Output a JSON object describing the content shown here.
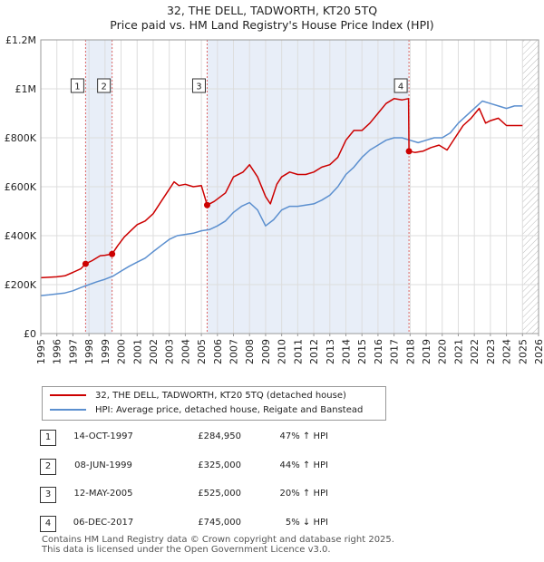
{
  "chart_data": {
    "type": "line",
    "title": "32, THE DELL, TADWORTH, KT20 5TQ",
    "subtitle": "Price paid vs. HM Land Registry's House Price Index (HPI)",
    "xlim": [
      1995,
      2026
    ],
    "ylim": [
      0,
      1200000
    ],
    "x_ticks": [
      "1995",
      "1996",
      "1997",
      "1998",
      "1999",
      "2000",
      "2001",
      "2002",
      "2003",
      "2004",
      "2005",
      "2006",
      "2007",
      "2008",
      "2009",
      "2010",
      "2011",
      "2012",
      "2013",
      "2014",
      "2015",
      "2016",
      "2017",
      "2018",
      "2019",
      "2020",
      "2021",
      "2022",
      "2023",
      "2024",
      "2025",
      "2026"
    ],
    "y_ticks": [
      {
        "value": 0,
        "label": "£0"
      },
      {
        "value": 200000,
        "label": "£200K"
      },
      {
        "value": 400000,
        "label": "£400K"
      },
      {
        "value": 600000,
        "label": "£600K"
      },
      {
        "value": 800000,
        "label": "£800K"
      },
      {
        "value": 1000000,
        "label": "£1M"
      },
      {
        "value": 1200000,
        "label": "£1.2M"
      }
    ],
    "grid": true,
    "shaded_periods": [
      {
        "from": 1997.79,
        "to": 1999.44
      },
      {
        "from": 2005.36,
        "to": 2017.93
      }
    ],
    "future_hatch_from": 2025.0,
    "series": [
      {
        "name": "32, THE DELL, TADWORTH, KT20 5TQ (detached house)",
        "color": "#cc0000",
        "x": [
          1995.0,
          1995.5,
          1996.0,
          1996.5,
          1997.0,
          1997.5,
          1997.79,
          1998.2,
          1998.7,
          1999.0,
          1999.44,
          1999.8,
          2000.2,
          2000.6,
          2001.0,
          2001.5,
          2002.0,
          2002.5,
          2003.0,
          2003.3,
          2003.6,
          2004.0,
          2004.5,
          2005.0,
          2005.36,
          2005.8,
          2006.5,
          2007.0,
          2007.6,
          2008.0,
          2008.5,
          2009.0,
          2009.3,
          2009.7,
          2010.0,
          2010.5,
          2011.0,
          2011.5,
          2012.0,
          2012.5,
          2013.0,
          2013.5,
          2014.0,
          2014.5,
          2015.0,
          2015.5,
          2016.0,
          2016.5,
          2017.0,
          2017.5,
          2017.9,
          2017.93,
          2018.3,
          2018.8,
          2019.3,
          2019.8,
          2020.3,
          2020.8,
          2021.3,
          2021.8,
          2022.3,
          2022.7,
          2023.0,
          2023.5,
          2024.0,
          2024.5,
          2025.0
        ],
        "y": [
          228000,
          230000,
          232000,
          236000,
          250000,
          265000,
          284950,
          298000,
          318000,
          320000,
          325000,
          360000,
          395000,
          420000,
          445000,
          460000,
          490000,
          540000,
          590000,
          620000,
          605000,
          610000,
          600000,
          605000,
          525000,
          540000,
          575000,
          640000,
          660000,
          690000,
          640000,
          560000,
          530000,
          610000,
          640000,
          660000,
          650000,
          650000,
          660000,
          680000,
          690000,
          720000,
          790000,
          830000,
          830000,
          860000,
          900000,
          940000,
          960000,
          955000,
          960000,
          745000,
          740000,
          745000,
          760000,
          770000,
          750000,
          800000,
          850000,
          880000,
          920000,
          860000,
          870000,
          880000,
          850000,
          850000,
          850000
        ]
      },
      {
        "name": "HPI: Average price, detached house, Reigate and Banstead",
        "color": "#5b8fcf",
        "x": [
          1995.0,
          1995.5,
          1996.0,
          1996.5,
          1997.0,
          1997.5,
          1998.0,
          1998.5,
          1999.0,
          1999.5,
          2000.0,
          2000.5,
          2001.0,
          2001.5,
          2002.0,
          2002.5,
          2003.0,
          2003.5,
          2004.0,
          2004.5,
          2005.0,
          2005.5,
          2006.0,
          2006.5,
          2007.0,
          2007.5,
          2008.0,
          2008.5,
          2009.0,
          2009.5,
          2010.0,
          2010.5,
          2011.0,
          2011.5,
          2012.0,
          2012.5,
          2013.0,
          2013.5,
          2014.0,
          2014.5,
          2015.0,
          2015.5,
          2016.0,
          2016.5,
          2017.0,
          2017.5,
          2018.0,
          2018.5,
          2019.0,
          2019.5,
          2020.0,
          2020.5,
          2021.0,
          2021.5,
          2022.0,
          2022.5,
          2023.0,
          2023.5,
          2024.0,
          2024.5,
          2025.0
        ],
        "y": [
          155000,
          158000,
          162000,
          166000,
          175000,
          188000,
          200000,
          212000,
          222000,
          235000,
          255000,
          275000,
          292000,
          308000,
          335000,
          360000,
          385000,
          400000,
          405000,
          410000,
          420000,
          425000,
          440000,
          460000,
          495000,
          520000,
          535000,
          505000,
          440000,
          465000,
          505000,
          520000,
          520000,
          525000,
          530000,
          545000,
          565000,
          600000,
          650000,
          680000,
          720000,
          750000,
          770000,
          790000,
          800000,
          800000,
          790000,
          780000,
          790000,
          800000,
          800000,
          820000,
          860000,
          890000,
          920000,
          950000,
          940000,
          930000,
          920000,
          930000,
          930000
        ]
      }
    ],
    "sale_markers": [
      {
        "id": "1",
        "x": 1997.79,
        "y": 284950
      },
      {
        "id": "2",
        "x": 1999.44,
        "y": 325000
      },
      {
        "id": "3",
        "x": 2005.36,
        "y": 525000
      },
      {
        "id": "4",
        "x": 2017.93,
        "y": 745000
      }
    ]
  },
  "legend": {
    "property_label": "32, THE DELL, TADWORTH, KT20 5TQ (detached house)",
    "hpi_label": "HPI: Average price, detached house, Reigate and Banstead"
  },
  "sales": [
    {
      "num": "1",
      "date": "14-OCT-1997",
      "price": "£284,950",
      "hpi": "47% ↑ HPI"
    },
    {
      "num": "2",
      "date": "08-JUN-1999",
      "price": "£325,000",
      "hpi": "44% ↑ HPI"
    },
    {
      "num": "3",
      "date": "12-MAY-2005",
      "price": "£525,000",
      "hpi": "20% ↑ HPI"
    },
    {
      "num": "4",
      "date": "06-DEC-2017",
      "price": "£745,000",
      "hpi": "5% ↓ HPI"
    }
  ],
  "footer": {
    "line1": "Contains HM Land Registry data © Crown copyright and database right 2025.",
    "line2": "This data is licensed under the Open Government Licence v3.0."
  }
}
